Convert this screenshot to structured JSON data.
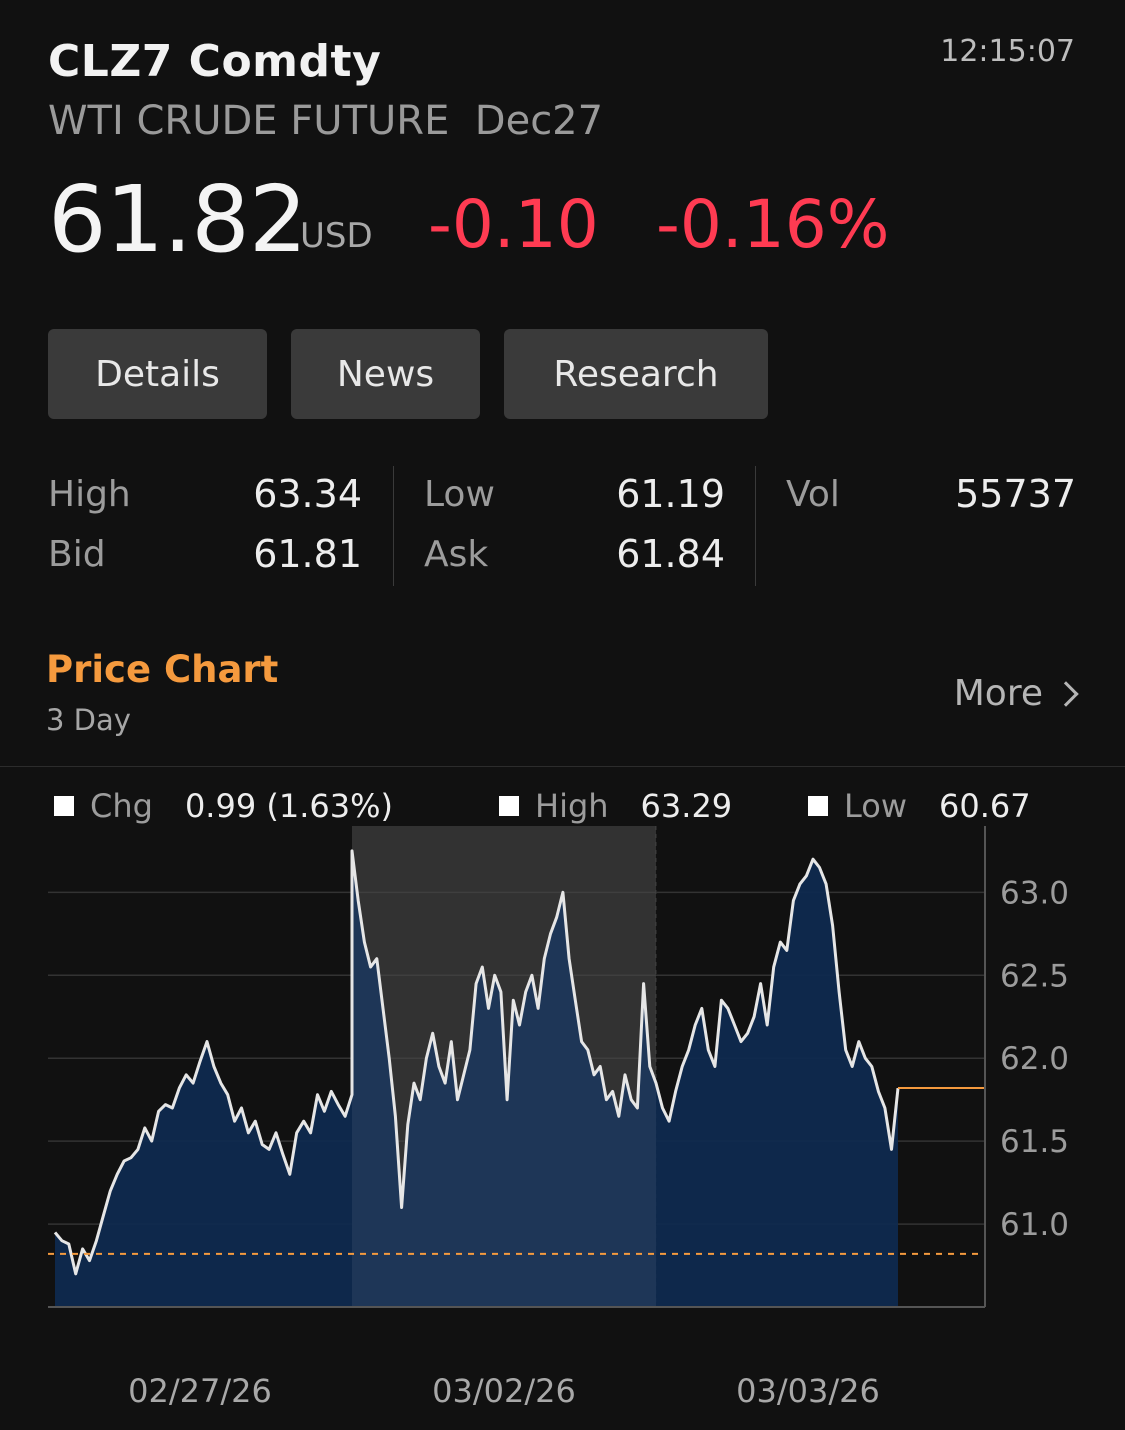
{
  "header": {
    "ticker": "CLZ7 Comdty",
    "time": "12:15:07",
    "description": "WTI CRUDE FUTURE  Dec27",
    "price": "61.82",
    "currency": "USD",
    "change": "-0.10",
    "change_pct": "-0.16%"
  },
  "tabs": [
    {
      "label": "Details"
    },
    {
      "label": "News"
    },
    {
      "label": "Research"
    }
  ],
  "stats": {
    "high_label": "High",
    "high": "63.34",
    "low_label": "Low",
    "low": "61.19",
    "vol_label": "Vol",
    "vol": "55737",
    "bid_label": "Bid",
    "bid": "61.81",
    "ask_label": "Ask",
    "ask": "61.84"
  },
  "price_chart": {
    "title": "Price Chart",
    "range": "3 Day",
    "more_label": "More",
    "legend": {
      "chg_label": "Chg",
      "chg_value": "0.99 (1.63%)",
      "high_label": "High",
      "high_value": "63.29",
      "low_label": "Low",
      "low_value": "60.67"
    }
  },
  "colors": {
    "negative": "#ff3b52",
    "accent": "#f59a3e",
    "area_fill": "#0f2a4f",
    "line": "#e6e6e6"
  },
  "chart_data": {
    "type": "area",
    "title": "",
    "xlabel": "",
    "ylabel": "",
    "x_tick_labels": [
      "02/27/26",
      "03/02/26",
      "03/03/26"
    ],
    "ylim": [
      60.5,
      63.4
    ],
    "y_ticks": [
      61.0,
      61.5,
      62.0,
      62.5,
      63.0
    ],
    "grid": true,
    "current_price_line": 61.82,
    "reference_line": 60.82,
    "highlighted_session": "03/02/26",
    "sessions": [
      {
        "date": "02/27/26",
        "values": [
          60.95,
          60.9,
          60.88,
          60.7,
          60.85,
          60.78,
          60.9,
          61.05,
          61.2,
          61.3,
          61.38,
          61.4,
          61.45,
          61.58,
          61.5,
          61.68,
          61.72,
          61.7,
          61.82,
          61.9,
          61.85,
          61.98,
          62.1,
          61.95,
          61.85,
          61.78,
          61.62,
          61.7,
          61.55,
          61.62,
          61.48,
          61.45,
          61.55,
          61.42,
          61.3,
          61.55,
          61.62,
          61.55,
          61.78,
          61.68,
          61.8,
          61.72,
          61.65,
          61.78
        ]
      },
      {
        "date": "03/02/26",
        "values": [
          63.25,
          62.95,
          62.7,
          62.55,
          62.6,
          62.3,
          62.0,
          61.65,
          61.1,
          61.6,
          61.85,
          61.75,
          62.0,
          62.15,
          61.95,
          61.85,
          62.1,
          61.75,
          61.9,
          62.05,
          62.45,
          62.55,
          62.3,
          62.5,
          62.4,
          61.75,
          62.35,
          62.2,
          62.4,
          62.5,
          62.3,
          62.6,
          62.75,
          62.85,
          63.0,
          62.6,
          62.35,
          62.1,
          62.05,
          61.9,
          61.95,
          61.75,
          61.8,
          61.65,
          61.9,
          61.75,
          61.7,
          62.45,
          61.95,
          61.85
        ]
      },
      {
        "date": "03/03/26",
        "values": [
          61.85,
          61.7,
          61.62,
          61.8,
          61.95,
          62.05,
          62.2,
          62.3,
          62.05,
          61.95,
          62.35,
          62.3,
          62.2,
          62.1,
          62.15,
          62.25,
          62.45,
          62.2,
          62.55,
          62.7,
          62.65,
          62.95,
          63.05,
          63.1,
          63.2,
          63.15,
          63.05,
          62.8,
          62.4,
          62.05,
          61.95,
          62.1,
          62.0,
          61.95,
          61.8,
          61.7,
          61.45,
          61.82
        ]
      }
    ]
  }
}
